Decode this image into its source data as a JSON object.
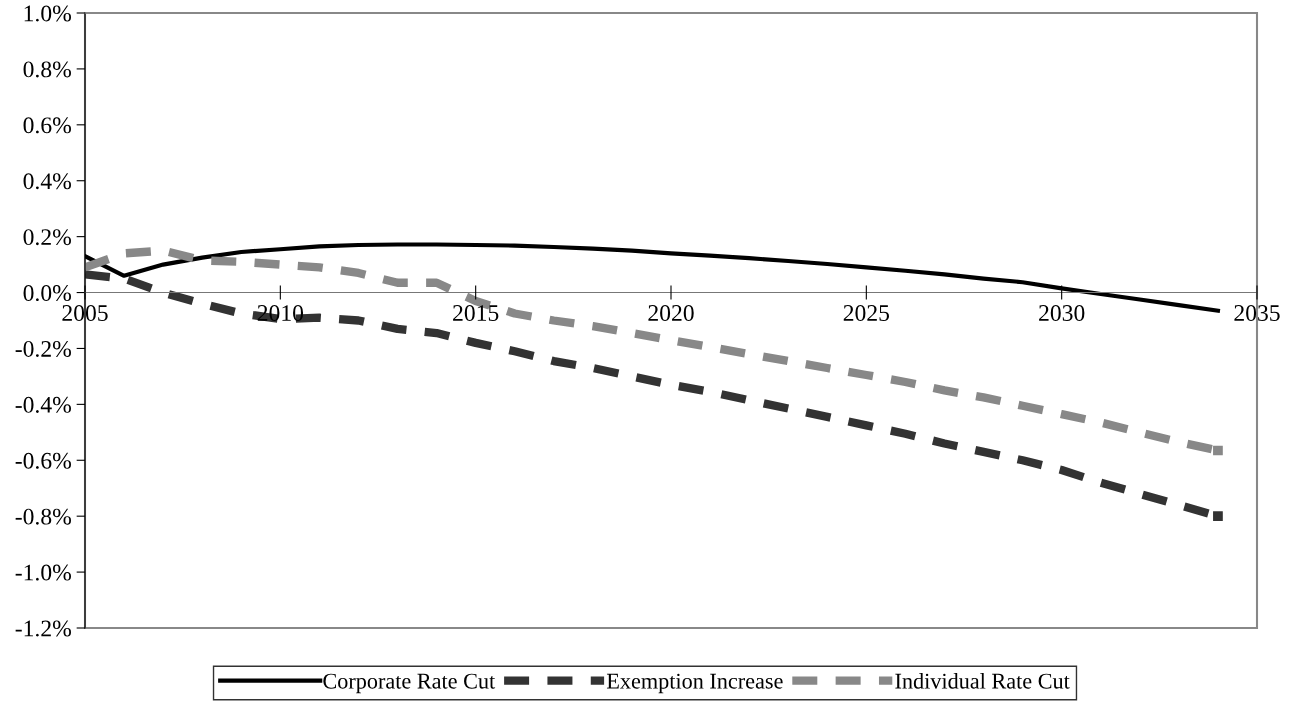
{
  "chart_data": {
    "type": "line",
    "x": [
      2005,
      2006,
      2007,
      2008,
      2009,
      2010,
      2011,
      2012,
      2013,
      2014,
      2015,
      2016,
      2017,
      2018,
      2019,
      2020,
      2021,
      2022,
      2023,
      2024,
      2025,
      2026,
      2027,
      2028,
      2029,
      2030,
      2031,
      2032,
      2033,
      2034
    ],
    "series": [
      {
        "name": "Corporate Rate Cut",
        "color": "#000000",
        "line_style": "solid",
        "values": [
          0.13,
          0.06,
          0.1,
          0.125,
          0.145,
          0.155,
          0.165,
          0.17,
          0.172,
          0.172,
          0.17,
          0.168,
          0.163,
          0.157,
          0.15,
          0.14,
          0.132,
          0.123,
          0.113,
          0.102,
          0.09,
          0.078,
          0.065,
          0.05,
          0.037,
          0.015,
          -0.005,
          -0.025,
          -0.045,
          -0.065
        ]
      },
      {
        "name": "Exemption Increase",
        "color": "#333333",
        "line_style": "dashed",
        "values": [
          0.065,
          0.05,
          0.0,
          -0.04,
          -0.075,
          -0.095,
          -0.09,
          -0.1,
          -0.13,
          -0.145,
          -0.18,
          -0.21,
          -0.245,
          -0.27,
          -0.3,
          -0.33,
          -0.355,
          -0.385,
          -0.415,
          -0.445,
          -0.475,
          -0.505,
          -0.54,
          -0.57,
          -0.6,
          -0.635,
          -0.68,
          -0.72,
          -0.76,
          -0.8
        ]
      },
      {
        "name": "Individual Rate Cut",
        "color": "#888888",
        "line_style": "dashed",
        "values": [
          0.09,
          0.14,
          0.15,
          0.115,
          0.11,
          0.1,
          0.09,
          0.07,
          0.035,
          0.035,
          -0.03,
          -0.075,
          -0.1,
          -0.12,
          -0.145,
          -0.17,
          -0.195,
          -0.22,
          -0.245,
          -0.27,
          -0.295,
          -0.32,
          -0.35,
          -0.375,
          -0.405,
          -0.435,
          -0.465,
          -0.5,
          -0.535,
          -0.565
        ]
      }
    ],
    "xlim": [
      2005,
      2035
    ],
    "xticks": [
      2005,
      2010,
      2015,
      2020,
      2025,
      2030,
      2035
    ],
    "ylim": [
      -1.2,
      1.0
    ],
    "yticks": [
      {
        "value": -1.2,
        "label": "-1.2%"
      },
      {
        "value": -1.0,
        "label": "-1.0%"
      },
      {
        "value": -0.8,
        "label": "-0.8%"
      },
      {
        "value": -0.6,
        "label": "-0.6%"
      },
      {
        "value": -0.4,
        "label": "-0.4%"
      },
      {
        "value": -0.2,
        "label": "-0.2%"
      },
      {
        "value": 0.0,
        "label": "0.0%"
      },
      {
        "value": 0.2,
        "label": "0.2%"
      },
      {
        "value": 0.4,
        "label": "0.4%"
      },
      {
        "value": 0.6,
        "label": "0.6%"
      },
      {
        "value": 0.8,
        "label": "0.8%"
      },
      {
        "value": 1.0,
        "label": "1.0%"
      }
    ],
    "legend": "bottom",
    "grid": false
  }
}
